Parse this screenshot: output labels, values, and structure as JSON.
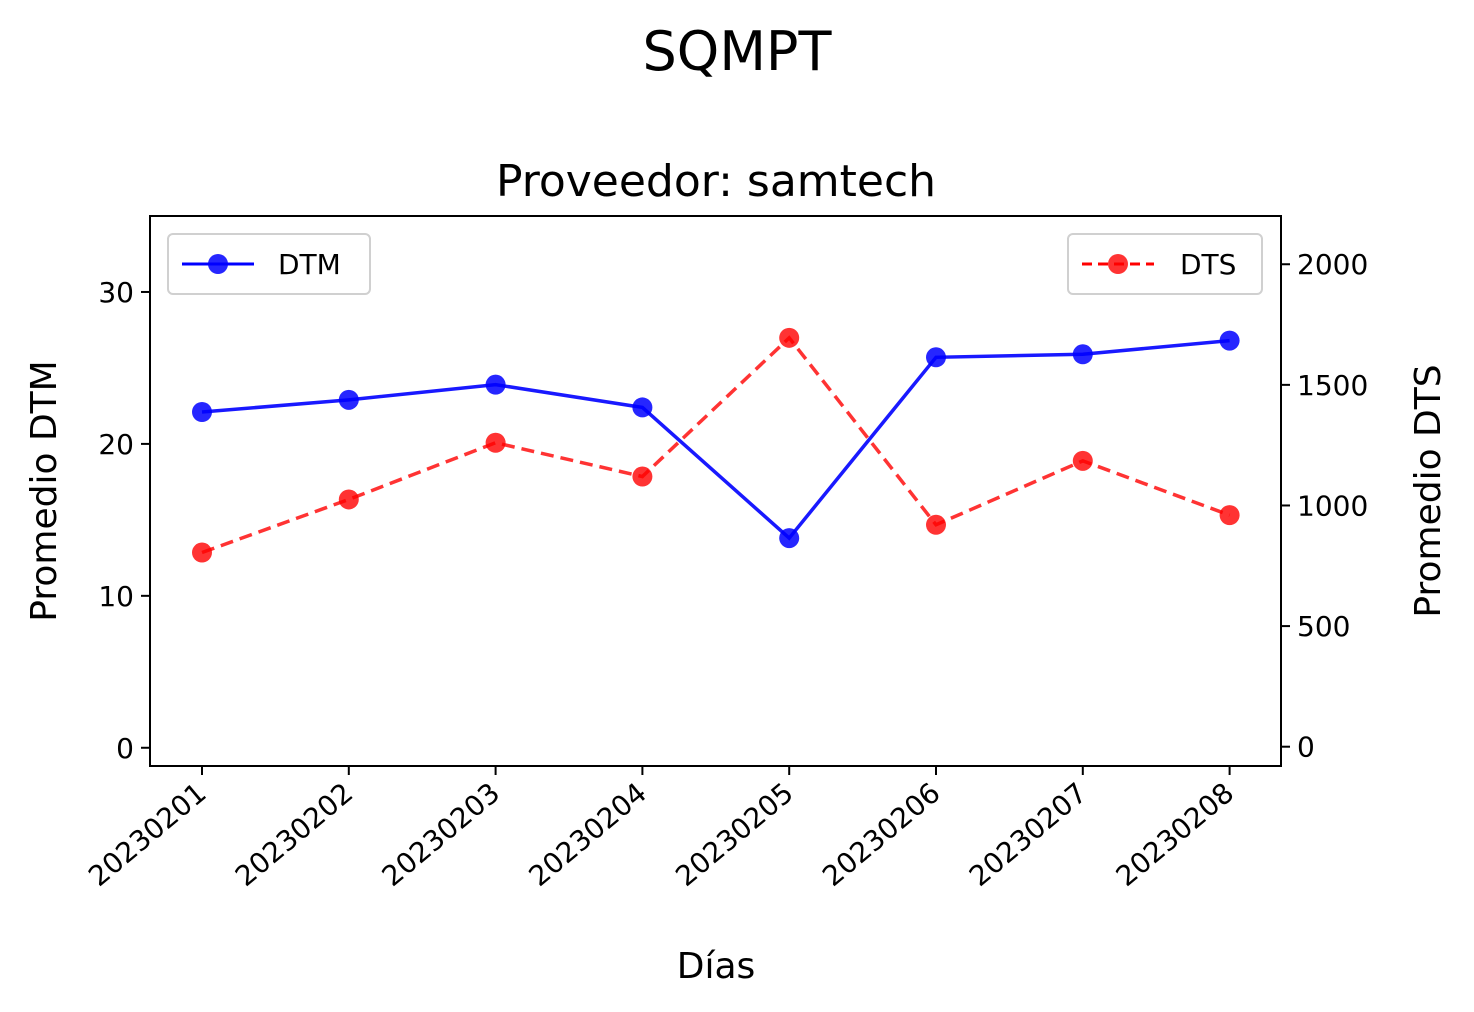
{
  "chart_data": {
    "type": "line",
    "suptitle": "SQMPT",
    "title": "Proveedor: samtech",
    "xlabel": "Días",
    "ylabel_left": "Promedio DTM",
    "ylabel_right": "Promedio DTS",
    "categories": [
      "20230201",
      "20230202",
      "20230203",
      "20230204",
      "20230205",
      "20230206",
      "20230207",
      "20230208"
    ],
    "y_left": {
      "lim": [
        -1.2,
        35
      ],
      "ticks": [
        0,
        10,
        20,
        30
      ]
    },
    "y_right": {
      "lim": [
        -80,
        2200
      ],
      "ticks": [
        0,
        500,
        1000,
        1500,
        2000
      ]
    },
    "grid": false,
    "series": [
      {
        "name": "DTM",
        "axis": "left",
        "color": "#0000ff",
        "style": "solid",
        "marker": "circle",
        "legend_position": "upper-left",
        "values": [
          22.1,
          22.9,
          23.9,
          22.4,
          13.8,
          25.7,
          25.9,
          26.8
        ]
      },
      {
        "name": "DTS",
        "axis": "right",
        "color": "#ff0000",
        "style": "dashed",
        "marker": "circle",
        "legend_position": "upper-right",
        "values": [
          805,
          1025,
          1260,
          1120,
          1695,
          920,
          1185,
          960
        ]
      }
    ]
  }
}
